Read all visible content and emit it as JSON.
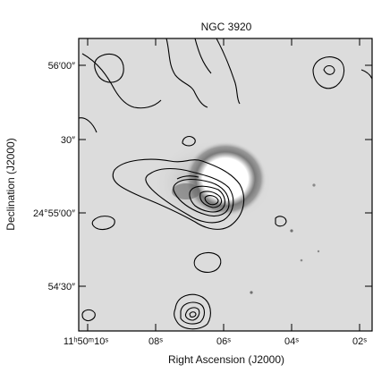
{
  "figure": {
    "title": "NGC 3920",
    "xlabel": "Right Ascension (J2000)",
    "ylabel": "Declination (J2000)",
    "y_ticks": [
      {
        "text": "56′00″"
      },
      {
        "text": "30″"
      },
      {
        "text": "24°55′00″"
      },
      {
        "text": "54′30″"
      }
    ],
    "x_ticks": [
      {
        "text": "11ʰ50ᵐ10ˢ"
      },
      {
        "text": "08ˢ"
      },
      {
        "text": "06ˢ"
      },
      {
        "text": "04ˢ"
      },
      {
        "text": "02ˢ"
      }
    ],
    "colors": {
      "background": "#ffffff",
      "image_field": "#dcdcdc",
      "contour": "#000000",
      "frame": "#000000"
    }
  }
}
